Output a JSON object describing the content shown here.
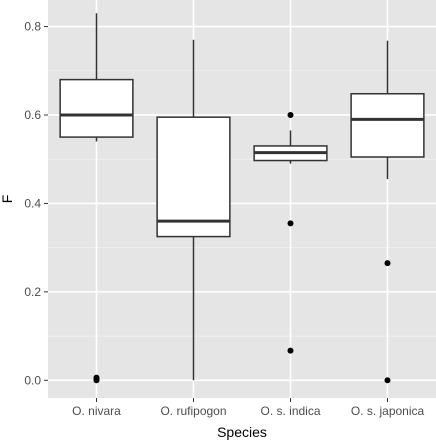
{
  "chart_data": {
    "type": "boxplot",
    "xlabel": "Species",
    "ylabel": "F",
    "ylim": [
      -0.04,
      0.86
    ],
    "yticks": [
      0.0,
      0.2,
      0.4,
      0.6,
      0.8
    ],
    "ytick_labels": [
      "0.0",
      "0.2",
      "0.4",
      "0.6",
      "0.8"
    ],
    "grid": true,
    "categories": [
      "O. nivara",
      "O. rufipogon",
      "O. s. indica",
      "O. s. japonica"
    ],
    "boxes": [
      {
        "category": "O. nivara",
        "whisker_low": 0.54,
        "q1": 0.55,
        "median": 0.6,
        "q3": 0.68,
        "whisker_high": 0.83,
        "outliers": [
          0.0,
          0.002,
          0.006
        ]
      },
      {
        "category": "O. rufipogon",
        "whisker_low": 0.0,
        "q1": 0.325,
        "median": 0.36,
        "q3": 0.595,
        "whisker_high": 0.77,
        "outliers": []
      },
      {
        "category": "O. s. indica",
        "whisker_low": 0.49,
        "q1": 0.497,
        "median": 0.515,
        "q3": 0.53,
        "whisker_high": 0.565,
        "outliers": [
          0.6,
          0.355,
          0.067
        ]
      },
      {
        "category": "O. s. japonica",
        "whisker_low": 0.455,
        "q1": 0.505,
        "median": 0.59,
        "q3": 0.648,
        "whisker_high": 0.768,
        "outliers": [
          0.265,
          0.0
        ]
      }
    ],
    "colors": {
      "panel": "#e5e5e5",
      "grid_major": "#ffffff",
      "grid_minor": "#f2f2f2",
      "box_fill": "#ffffff",
      "line": "#333333",
      "outlier": "#000000"
    }
  }
}
